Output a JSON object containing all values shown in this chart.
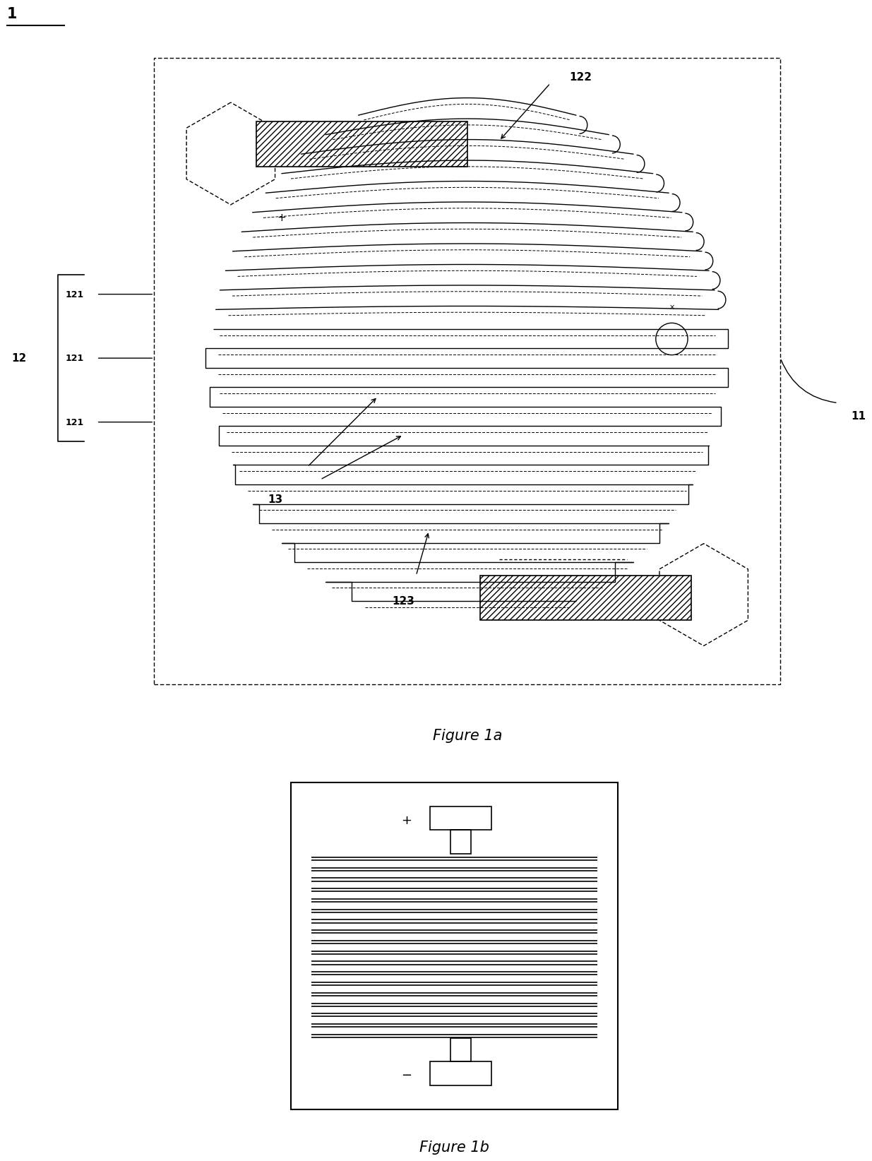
{
  "fig_width": 12.4,
  "fig_height": 17.23,
  "bg_color": "#ffffff",
  "label_1": "1",
  "label_11": "11",
  "label_12": "12",
  "label_121a": "121",
  "label_121b": "121",
  "label_121c": "121",
  "label_122": "122",
  "label_123": "123",
  "label_13": "13",
  "fig1a_caption": "Figure 1a",
  "fig1b_caption": "Figure 1b"
}
